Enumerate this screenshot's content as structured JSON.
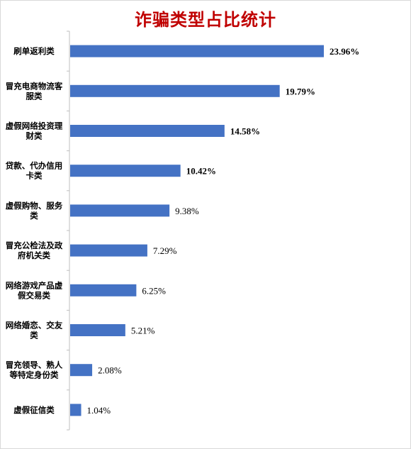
{
  "chart_data": {
    "type": "bar",
    "orientation": "horizontal",
    "title": "诈骗类型占比统计",
    "categories": [
      "刷单返利类",
      "冒充电商物流客服类",
      "虚假网络投资理财类",
      "贷款、代办信用卡类",
      "虚假购物、服务类",
      "冒充公检法及政府机关类",
      "网络游戏产品虚假交易类",
      "网络婚恋、交友类",
      "冒充领导、熟人等特定身份类",
      "虚假征信类"
    ],
    "category_lines": [
      [
        "刷单返利类"
      ],
      [
        "冒充电商物流客",
        "服类"
      ],
      [
        "虚假网络投资理",
        "财类"
      ],
      [
        "贷款、代办信用",
        "卡类"
      ],
      [
        "虚假购物、服务",
        "类"
      ],
      [
        "冒充公检法及政",
        "府机关类"
      ],
      [
        "网络游戏产品虚",
        "假交易类"
      ],
      [
        "网络婚恋、交友",
        "类"
      ],
      [
        "冒充领导、熟人",
        "等特定身份类"
      ],
      [
        "虚假征信类"
      ]
    ],
    "values": [
      23.96,
      19.79,
      14.58,
      10.42,
      9.38,
      7.29,
      6.25,
      5.21,
      2.08,
      1.04
    ],
    "value_labels": [
      "23.96%",
      "19.79%",
      "14.58%",
      "10.42%",
      "9.38%",
      "7.29%",
      "6.25%",
      "5.21%",
      "2.08%",
      "1.04%"
    ],
    "xlim": [
      0,
      25
    ],
    "grid": false,
    "legend": "none",
    "colors": {
      "bar": "#4472c4",
      "title": "#c00000",
      "top_label": "#c00000",
      "highlight_label": "#ed7d31",
      "normal_label": "#000000"
    },
    "label_styles": [
      "top",
      "highlight",
      "highlight",
      "highlight",
      "normal",
      "normal",
      "normal",
      "normal",
      "normal",
      "normal"
    ]
  }
}
